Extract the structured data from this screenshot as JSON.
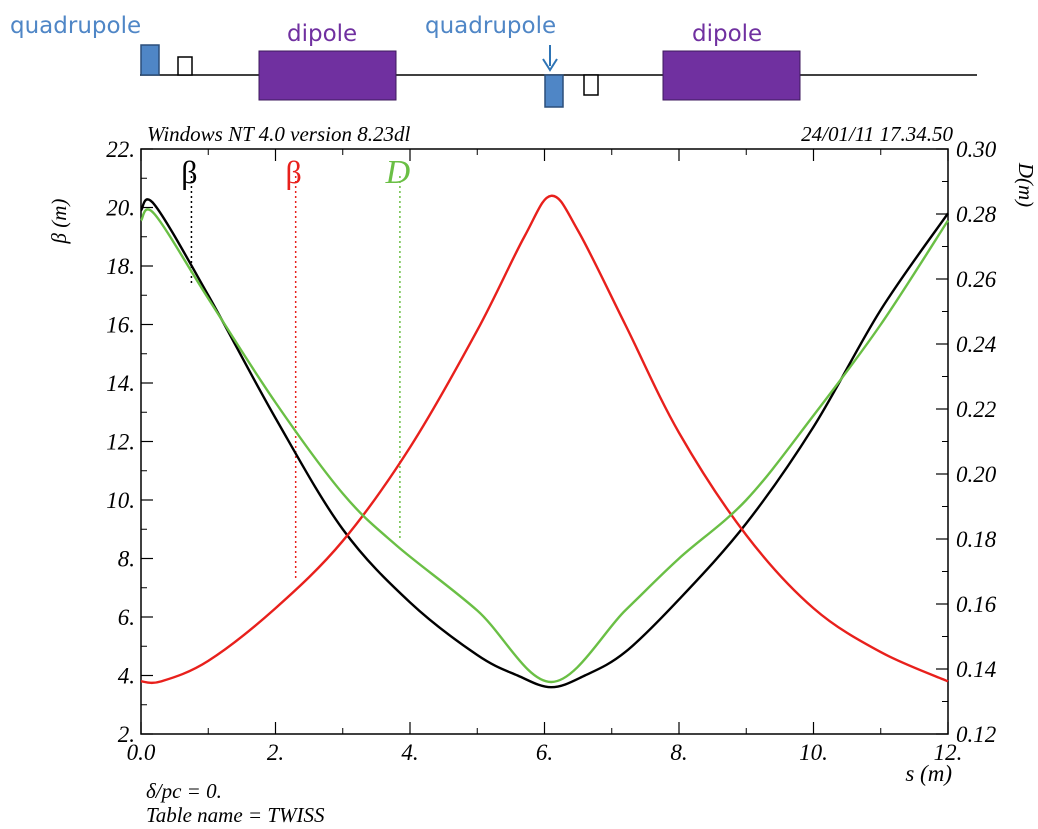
{
  "lattice": {
    "labels": {
      "quadrupole_left": "quadrupole",
      "dipole_left": "dipole",
      "quadrupole_mid": "quadrupole",
      "dipole_right": "dipole"
    },
    "colors": {
      "quadrupole": "#4f86c6",
      "dipole": "#7030a0",
      "quadrupole_label": "#4f86c6",
      "dipole_label": "#7030a0"
    }
  },
  "header": {
    "left": "Windows NT 4.0 version 8.23dl",
    "right": "24/01/11  17.34.50"
  },
  "footer": {
    "line1": "δ/pc = 0.",
    "line2": "Table name = TWISS"
  },
  "chart_data": {
    "type": "line",
    "xlabel": "s (m)",
    "ylabel": "β (m)",
    "y2label": "D(m)",
    "xlim": [
      0,
      12
    ],
    "ylim": [
      2,
      22
    ],
    "y2lim": [
      0.12,
      0.3
    ],
    "x_tick_labels": [
      "0.0",
      "2.",
      "4.",
      "6.",
      "8.",
      "10.",
      "12."
    ],
    "y_tick_labels": [
      "2.",
      "4.",
      "6.",
      "8.",
      "10.",
      "12.",
      "14.",
      "16.",
      "18.",
      "20.",
      "22."
    ],
    "y2_tick_labels": [
      "0.12",
      "0.14",
      "0.16",
      "0.18",
      "0.20",
      "0.22",
      "0.24",
      "0.26",
      "0.28",
      "0.30"
    ],
    "legend": [
      {
        "label": "β",
        "color": "#000000",
        "s": 0.75
      },
      {
        "label": "β",
        "color": "#e8201c",
        "s": 2.3
      },
      {
        "label": "D",
        "color": "#6abf45",
        "s": 3.85
      }
    ],
    "series": [
      {
        "axis": "left",
        "color": "#000000",
        "x": [
          0,
          0.2,
          1.0,
          2.0,
          3.0,
          4.0,
          5.0,
          5.6,
          6.1,
          6.6,
          7.2,
          8.0,
          9.0,
          10.0,
          11.0,
          12.0
        ],
        "y": [
          19.9,
          20.1,
          17.0,
          12.8,
          9.0,
          6.5,
          4.7,
          4.0,
          3.6,
          4.0,
          4.8,
          6.6,
          9.2,
          12.5,
          16.5,
          19.8
        ]
      },
      {
        "axis": "left",
        "color": "#e8201c",
        "x": [
          0,
          0.3,
          1.0,
          2.0,
          3.0,
          4.0,
          5.0,
          5.7,
          6.1,
          6.5,
          7.2,
          8.0,
          9.0,
          10.0,
          11.0,
          12.0
        ],
        "y": [
          3.8,
          3.8,
          4.5,
          6.3,
          8.6,
          11.8,
          15.8,
          19.0,
          20.4,
          19.2,
          16.0,
          12.3,
          8.8,
          6.3,
          4.8,
          3.8
        ]
      },
      {
        "axis": "right",
        "color": "#6abf45",
        "x": [
          0,
          0.2,
          1.0,
          2.0,
          3.0,
          3.8,
          5.0,
          6.1,
          7.2,
          8.0,
          9.0,
          10.0,
          11.0,
          12.0
        ],
        "y": [
          0.278,
          0.28,
          0.254,
          0.222,
          0.194,
          0.178,
          0.158,
          0.136,
          0.158,
          0.174,
          0.192,
          0.218,
          0.246,
          0.278
        ]
      }
    ]
  }
}
